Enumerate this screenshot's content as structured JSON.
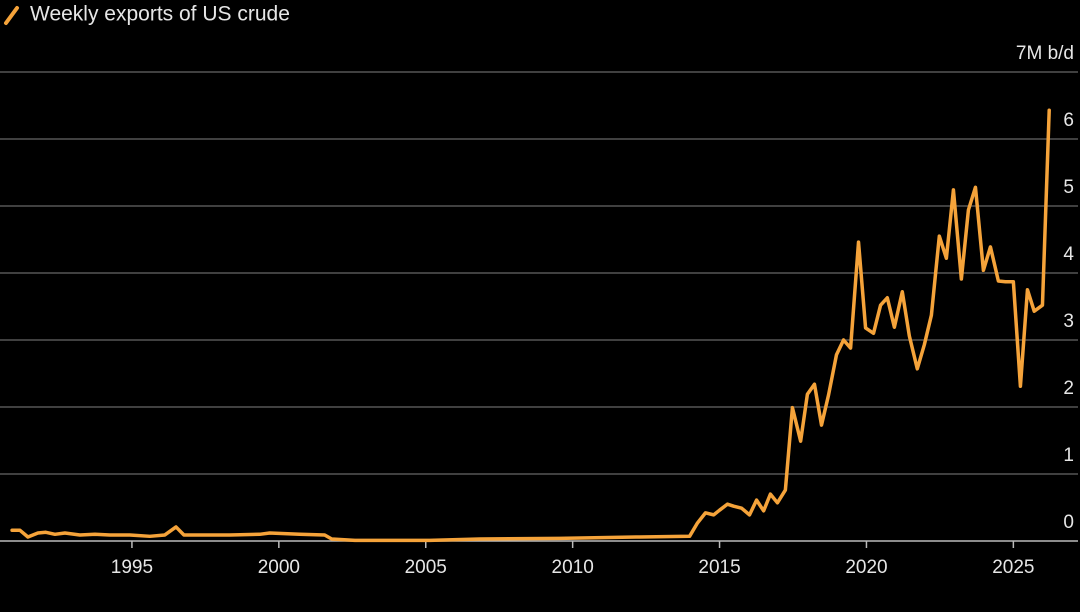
{
  "chart_data": {
    "type": "line",
    "ylim": [
      0,
      7
    ],
    "yticks": [
      0,
      1,
      2,
      3,
      4,
      5,
      6,
      {
        "value": 7,
        "label": "7M b/d"
      }
    ],
    "xlim": [
      1990.85,
      2027.2
    ],
    "xticks": [
      1995,
      2000,
      2005,
      2010,
      2015,
      2020,
      2025
    ],
    "grid": true,
    "legend": "top-left",
    "x": [
      1990.92,
      1991.19,
      1991.46,
      1991.8,
      1992.07,
      1992.38,
      1992.72,
      1993.23,
      1993.74,
      1994.25,
      1994.93,
      1995.61,
      1996.12,
      1996.5,
      1996.77,
      1997.31,
      1998.33,
      1999.35,
      1999.69,
      2000.71,
      2001.56,
      2001.8,
      2002.59,
      2004.12,
      2005.14,
      2006.84,
      2009.56,
      2012.28,
      2013.98,
      2014.25,
      2014.52,
      2014.8,
      2015.0,
      2015.27,
      2015.48,
      2015.75,
      2016.02,
      2016.26,
      2016.5,
      2016.73,
      2016.97,
      2017.24,
      2017.48,
      2017.76,
      2017.99,
      2018.23,
      2018.47,
      2018.71,
      2018.98,
      2019.22,
      2019.46,
      2019.73,
      2019.97,
      2020.24,
      2020.48,
      2020.71,
      2020.95,
      2021.22,
      2021.46,
      2021.73,
      2021.97,
      2022.21,
      2022.48,
      2022.72,
      2022.96,
      2023.23,
      2023.47,
      2023.71,
      2023.98,
      2024.22,
      2024.49,
      2024.73,
      2025.0,
      2025.24,
      2025.48,
      2025.71,
      2025.99,
      2026.22
    ],
    "series": [
      {
        "name": "Weekly exports of US crude",
        "color": "#f5a33a",
        "values": [
          0.16,
          0.16,
          0.06,
          0.12,
          0.13,
          0.1,
          0.12,
          0.09,
          0.1,
          0.09,
          0.09,
          0.07,
          0.09,
          0.21,
          0.09,
          0.09,
          0.09,
          0.1,
          0.12,
          0.1,
          0.09,
          0.03,
          0.01,
          0.01,
          0.01,
          0.03,
          0.04,
          0.06,
          0.07,
          0.27,
          0.42,
          0.39,
          0.46,
          0.55,
          0.52,
          0.49,
          0.39,
          0.61,
          0.45,
          0.7,
          0.57,
          0.76,
          1.99,
          1.49,
          2.19,
          2.34,
          1.73,
          2.18,
          2.78,
          3.0,
          2.88,
          4.46,
          3.18,
          3.1,
          3.52,
          3.63,
          3.19,
          3.72,
          3.06,
          2.57,
          2.93,
          3.37,
          4.55,
          4.22,
          5.24,
          3.91,
          4.94,
          5.28,
          4.04,
          4.39,
          3.88,
          3.87,
          3.87,
          2.31,
          3.75,
          3.43,
          3.52,
          6.43
        ]
      }
    ]
  }
}
